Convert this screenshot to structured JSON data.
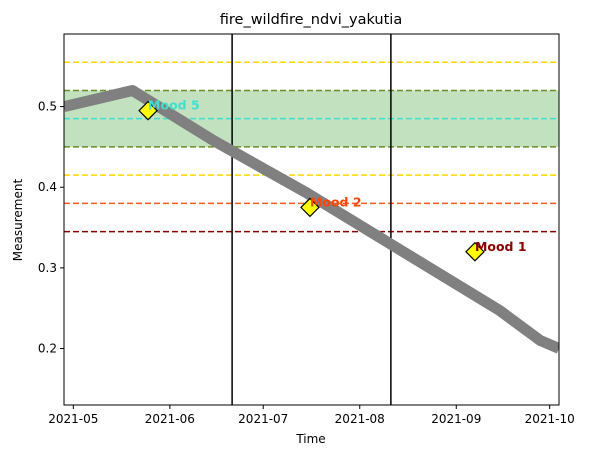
{
  "chart_data": {
    "type": "line",
    "title": "fire_wildfire_ndvi_yakutia",
    "xlabel": "Time",
    "ylabel": "Measurement",
    "x_ticks": [
      "2021-05",
      "2021-06",
      "2021-07",
      "2021-08",
      "2021-09",
      "2021-10"
    ],
    "y_ticks": [
      "0.2",
      "0.3",
      "0.4",
      "0.5"
    ],
    "xlim": [
      "2021-04-28",
      "2021-10-04"
    ],
    "ylim": [
      0.13,
      0.59
    ],
    "grid": false,
    "series": [
      {
        "color": "#808080",
        "x": [
          "2021-04-28",
          "2021-05-20",
          "2021-06-15",
          "2021-07-15",
          "2021-08-15",
          "2021-09-15",
          "2021-09-28",
          "2021-10-04"
        ],
        "y": [
          0.5,
          0.52,
          0.458,
          0.393,
          0.32,
          0.247,
          0.21,
          0.2
        ]
      }
    ],
    "band": {
      "y_from": 0.45,
      "y_to": 0.52,
      "color": "#c1e1bf",
      "edge_color": "#6b8e23"
    },
    "hlines": [
      {
        "y": 0.555,
        "color": "#ffd700"
      },
      {
        "y": 0.485,
        "color": "#40e0d0"
      },
      {
        "y": 0.415,
        "color": "#ffd700"
      },
      {
        "y": 0.38,
        "color": "#ff5a1f"
      },
      {
        "y": 0.345,
        "color": "#8b0000"
      }
    ],
    "vlines": [
      {
        "x": "2021-06-21",
        "color": "#000000"
      },
      {
        "x": "2021-08-11",
        "color": "#000000"
      }
    ],
    "annotations": [
      {
        "x": "2021-05-25",
        "y": 0.495,
        "label": "Mood 5",
        "color": "#40e0d0"
      },
      {
        "x": "2021-07-16",
        "y": 0.375,
        "label": "Mood 2",
        "color": "#ff4500"
      },
      {
        "x": "2021-09-07",
        "y": 0.32,
        "label": "Mood 1",
        "color": "#8b0000"
      }
    ],
    "marker_color": "#ffff00"
  }
}
